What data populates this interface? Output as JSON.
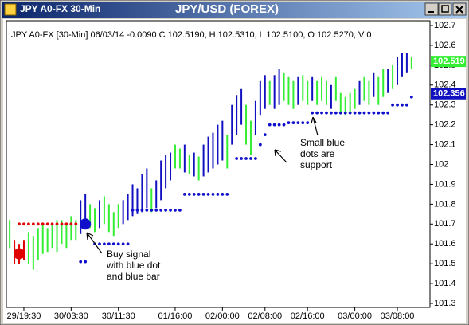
{
  "window": {
    "title": "JPY A0-FX 30-Min"
  },
  "chart_data": {
    "type": "ohlc",
    "title": "JPY/USD (FOREX)",
    "info": "JPY A0-FX [30-Min] 06/03/14 -0.0090 C 102.5190, H 102.5310, L 102.5100, O 102.5270, V 0",
    "xlim": [
      -0.7,
      88.9
    ],
    "ylim": [
      101.28,
      102.724
    ],
    "yticks": [
      101.3,
      101.4,
      101.5,
      101.6,
      101.7,
      101.8,
      101.9,
      102,
      102.1,
      102.2,
      102.3,
      102.4,
      102.5,
      102.6,
      102.7
    ],
    "xticks": [
      {
        "value": 3,
        "label": "29/19:30"
      },
      {
        "value": 13,
        "label": "30/03:30"
      },
      {
        "value": 23,
        "label": "30/11:30"
      },
      {
        "value": 35,
        "label": "01/16:00"
      },
      {
        "value": 45,
        "label": "02/00:00"
      },
      {
        "value": 54,
        "label": "02/08:00"
      },
      {
        "value": 63,
        "label": "02/16:00"
      },
      {
        "value": 73,
        "label": "03/00:00"
      },
      {
        "value": 82,
        "label": "03/08:00"
      }
    ],
    "bars": {
      "high": [
        101.72,
        101.62,
        101.6,
        101.62,
        101.66,
        101.64,
        101.68,
        101.7,
        101.68,
        101.7,
        101.72,
        101.72,
        101.7,
        101.74,
        101.72,
        101.82,
        101.85,
        101.8,
        101.78,
        101.82,
        101.84,
        101.8,
        101.76,
        101.8,
        101.82,
        101.85,
        101.9,
        101.88,
        101.95,
        101.98,
        101.88,
        101.92,
        102.02,
        102.05,
        102.06,
        102.1,
        102.08,
        102.1,
        102.05,
        102.06,
        102.04,
        102.1,
        102.14,
        102.16,
        102.2,
        102.22,
        102.15,
        102.3,
        102.35,
        102.38,
        102.3,
        102.22,
        102.32,
        102.42,
        102.45,
        102.42,
        102.45,
        102.48,
        102.46,
        102.44,
        102.42,
        102.44,
        102.45,
        102.42,
        102.44,
        102.42,
        102.44,
        102.42,
        102.4,
        102.44,
        102.36,
        102.34,
        102.36,
        102.38,
        102.42,
        102.44,
        102.42,
        102.46,
        102.44,
        102.48,
        102.48,
        102.5,
        102.54,
        102.56,
        102.56,
        102.54
      ],
      "low": [
        101.58,
        101.5,
        101.5,
        101.52,
        101.5,
        101.47,
        101.52,
        101.55,
        101.56,
        101.58,
        101.56,
        101.6,
        101.58,
        101.62,
        101.62,
        101.65,
        101.7,
        101.68,
        101.66,
        101.68,
        101.7,
        101.66,
        101.64,
        101.68,
        101.7,
        101.72,
        101.74,
        101.75,
        101.76,
        101.78,
        101.76,
        101.78,
        101.82,
        101.88,
        101.92,
        101.98,
        101.98,
        101.96,
        101.95,
        101.94,
        101.92,
        101.94,
        101.96,
        101.98,
        102.0,
        102.02,
        101.98,
        102.1,
        102.15,
        102.2,
        102.1,
        102.05,
        102.15,
        102.25,
        102.28,
        102.3,
        102.28,
        102.3,
        102.32,
        102.3,
        102.28,
        102.3,
        102.32,
        102.3,
        102.32,
        102.3,
        102.32,
        102.3,
        102.28,
        102.32,
        102.26,
        102.25,
        102.26,
        102.28,
        102.3,
        102.32,
        102.3,
        102.34,
        102.3,
        102.34,
        102.36,
        102.38,
        102.4,
        102.44,
        102.46,
        102.48
      ],
      "color": [
        "#33ee33",
        "#e00000",
        "#e00000",
        "#e00000",
        "#33ee33",
        "#33ee33",
        "#33ee33",
        "#33ee33",
        "#33ee33",
        "#33ee33",
        "#33ee33",
        "#33ee33",
        "#33ee33",
        "#33ee33",
        "#33ee33",
        "#1010c0",
        "#1010c0",
        "#33ee33",
        "#33ee33",
        "#1010c0",
        "#33ee33",
        "#33ee33",
        "#33ee33",
        "#33ee33",
        "#1010c0",
        "#1010c0",
        "#1010c0",
        "#1010c0",
        "#1010c0",
        "#1010c0",
        "#33ee33",
        "#1010c0",
        "#1010c0",
        "#1010c0",
        "#1010c0",
        "#33ee33",
        "#33ee33",
        "#1010c0",
        "#33ee33",
        "#1010c0",
        "#33ee33",
        "#1010c0",
        "#1010c0",
        "#1010c0",
        "#1010c0",
        "#1010c0",
        "#33ee33",
        "#1010c0",
        "#1010c0",
        "#1010c0",
        "#33ee33",
        "#33ee33",
        "#1010c0",
        "#1010c0",
        "#1010c0",
        "#33ee33",
        "#1010c0",
        "#1010c0",
        "#33ee33",
        "#33ee33",
        "#33ee33",
        "#1010c0",
        "#33ee33",
        "#33ee33",
        "#1010c0",
        "#33ee33",
        "#33ee33",
        "#33ee33",
        "#1010c0",
        "#33ee33",
        "#33ee33",
        "#33ee33",
        "#33ee33",
        "#33ee33",
        "#1010c0",
        "#33ee33",
        "#33ee33",
        "#1010c0",
        "#33ee33",
        "#33ee33",
        "#1010c0",
        "#33ee33",
        "#1010c0",
        "#1010c0",
        "#1010c0",
        "#33ee33"
      ]
    },
    "dots": [
      {
        "color": "#e00000",
        "values": [
          null,
          null,
          101.7,
          101.7,
          101.7,
          101.7,
          101.7,
          101.7,
          101.7,
          101.7,
          101.7,
          101.7,
          101.7,
          101.7,
          101.7,
          null,
          null,
          null,
          null,
          null,
          null,
          null,
          null,
          null,
          null,
          null,
          null,
          null,
          null,
          null,
          null,
          null,
          null,
          null,
          null,
          null,
          null,
          null,
          null,
          null,
          null,
          null,
          null,
          null,
          null,
          null,
          null,
          null,
          null,
          null,
          null,
          null,
          null,
          null,
          null,
          null,
          null,
          null,
          null,
          null,
          null,
          null,
          null,
          null,
          null,
          null,
          null,
          null,
          null,
          null,
          null,
          null,
          null,
          null,
          null,
          null,
          null,
          null,
          null,
          null,
          null,
          null,
          null,
          null,
          null,
          null
        ]
      },
      {
        "color": "#1010cc",
        "values": [
          null,
          null,
          null,
          null,
          null,
          null,
          null,
          null,
          null,
          null,
          null,
          null,
          null,
          null,
          null,
          101.51,
          101.51,
          null,
          101.6,
          101.6,
          101.6,
          101.6,
          101.6,
          101.6,
          101.6,
          101.6,
          101.77,
          101.77,
          101.77,
          101.77,
          101.77,
          101.77,
          101.77,
          101.77,
          101.77,
          101.77,
          101.77,
          101.85,
          101.85,
          101.85,
          101.85,
          101.85,
          101.85,
          101.85,
          101.85,
          101.85,
          101.85,
          null,
          102.03,
          102.03,
          102.03,
          102.03,
          102.03,
          102.1,
          102.15,
          102.2,
          102.2,
          102.2,
          102.2,
          102.21,
          102.21,
          102.21,
          102.21,
          102.21,
          102.26,
          102.26,
          102.26,
          102.26,
          102.26,
          102.26,
          102.26,
          102.26,
          102.26,
          102.26,
          102.26,
          102.26,
          102.26,
          102.26,
          102.26,
          102.26,
          102.26,
          102.3,
          102.3,
          102.3,
          102.3,
          102.34
        ]
      }
    ],
    "signals": [
      {
        "x": 2,
        "value": 101.55,
        "color": "#e00000"
      },
      {
        "x": 16,
        "value": 101.7,
        "color": "#1010cc"
      }
    ],
    "price_marks": [
      {
        "value": 102.519,
        "label": "102.519",
        "color": "#33ee33",
        "text_color": "#ffffff"
      },
      {
        "value": 102.356,
        "label": "102.356",
        "color": "#1010c0",
        "text_color": "#ffffff"
      }
    ],
    "annotations": [
      {
        "lines": [
          "Buy signal",
          "with blue dot",
          "and blue bar"
        ]
      },
      {
        "lines": [
          "Small blue",
          "dots are",
          "support"
        ]
      }
    ]
  }
}
